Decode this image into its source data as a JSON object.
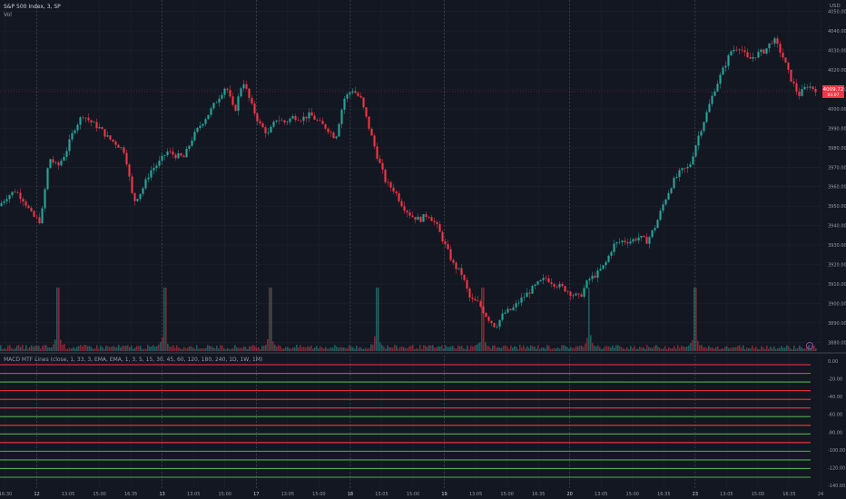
{
  "header": {
    "symbol": "S&P 500 Index, 3, SP",
    "volume_label": "Vol",
    "currency": "USD"
  },
  "price_tag": {
    "value": "4009.72",
    "countdown": "04:07",
    "color": "#f23645"
  },
  "alert_glyph": "⚡",
  "colors": {
    "up": "#26a69a",
    "down": "#f23645",
    "background": "#131722",
    "grid": "#1e222d",
    "sessionline": "#4a4e59"
  },
  "indicator": {
    "label": "MACD MTF Lines (close, 1, 33, 3, EMA, EMA, 1, 3, 5, 15, 30, 45, 60, 120, 180, 240, 1D, 1W, 1M)",
    "ticks": [
      "0.00",
      "-20.00",
      "-40.00",
      "-60.00",
      "-80.00",
      "-100.00",
      "-120.00",
      "-140.00"
    ],
    "lines": [
      "down",
      "down",
      "up",
      "down",
      "down",
      "down",
      "up",
      "down",
      "up",
      "down",
      "up",
      "up",
      "up",
      "up"
    ]
  },
  "chart_data": {
    "type": "candlestick",
    "title": "S&P 500 Index, 3, SP",
    "ylim": [
      3875,
      4055
    ],
    "yticks": [
      "4050.00",
      "4040.00",
      "4030.00",
      "4020.00",
      "4010.00",
      "4000.00",
      "3990.00",
      "3980.00",
      "3970.00",
      "3960.00",
      "3950.00",
      "3940.00",
      "3930.00",
      "3920.00",
      "3910.00",
      "3900.00",
      "3890.00",
      "3880.00"
    ],
    "xticks": [
      "16:30",
      "12",
      "13:05",
      "15:00",
      "16:35",
      "13",
      "13:05",
      "15:00",
      "17",
      "13:05",
      "15:00",
      "18",
      "13:05",
      "15:00",
      "19",
      "13:05",
      "15:00",
      "16:35",
      "20",
      "13:05",
      "15:00",
      "16:35",
      "23",
      "13:05",
      "15:00",
      "16:35",
      "24"
    ],
    "session_starts": [
      "12",
      "13",
      "17",
      "18",
      "19",
      "20",
      "23"
    ],
    "price_path": [
      3950,
      3955,
      3958,
      3953,
      3945,
      3942,
      3975,
      3970,
      3978,
      3990,
      3997,
      3993,
      3990,
      3985,
      3982,
      3978,
      3952,
      3958,
      3968,
      3972,
      3978,
      3976,
      3975,
      3985,
      3992,
      3998,
      4005,
      4012,
      3998,
      4015,
      4002,
      3992,
      3987,
      3995,
      3993,
      3996,
      3995,
      3997,
      3993,
      3990,
      3985,
      4005,
      4010,
      4005,
      3990,
      3975,
      3962,
      3958,
      3950,
      3945,
      3943,
      3946,
      3940,
      3930,
      3920,
      3915,
      3902,
      3900,
      3893,
      3888,
      3895,
      3897,
      3902,
      3906,
      3910,
      3913,
      3910,
      3908,
      3905,
      3903,
      3912,
      3915,
      3920,
      3930,
      3932,
      3932,
      3934,
      3932,
      3940,
      3952,
      3962,
      3968,
      3970,
      3985,
      3997,
      4010,
      4020,
      4030,
      4032,
      4025,
      4028,
      4030,
      4036,
      4028,
      4016,
      4007,
      4012,
      4010
    ],
    "volume_spikes": [
      0.07,
      0.2,
      0.33,
      0.46,
      0.59,
      0.72,
      0.85
    ]
  }
}
